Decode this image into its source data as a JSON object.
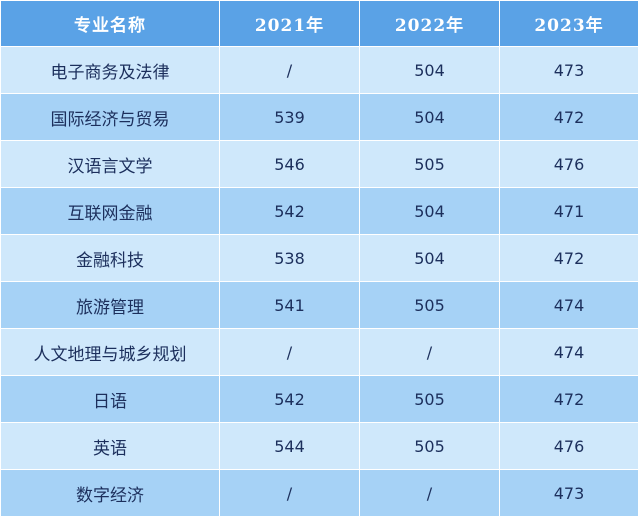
{
  "table": {
    "headers": [
      "专业名称",
      "2021年",
      "2022年",
      "2023年"
    ],
    "rows": [
      [
        "电子商务及法律",
        "/",
        "504",
        "473"
      ],
      [
        "国际经济与贸易",
        "539",
        "504",
        "472"
      ],
      [
        "汉语言文学",
        "546",
        "505",
        "476"
      ],
      [
        "互联网金融",
        "542",
        "504",
        "471"
      ],
      [
        "金融科技",
        "538",
        "504",
        "472"
      ],
      [
        "旅游管理",
        "541",
        "505",
        "474"
      ],
      [
        "人文地理与城乡规划",
        "/",
        "/",
        "474"
      ],
      [
        "日语",
        "542",
        "505",
        "472"
      ],
      [
        "英语",
        "544",
        "505",
        "476"
      ],
      [
        "数字经济",
        "/",
        "/",
        "473"
      ]
    ]
  },
  "colors": {
    "header_background": "#5aa2e6",
    "header_text": "#ffffff",
    "row_light": "#cfe8fb",
    "row_dark": "#a6d2f6",
    "cell_text": "#1c2f5c",
    "gridline": "#ffffff"
  }
}
